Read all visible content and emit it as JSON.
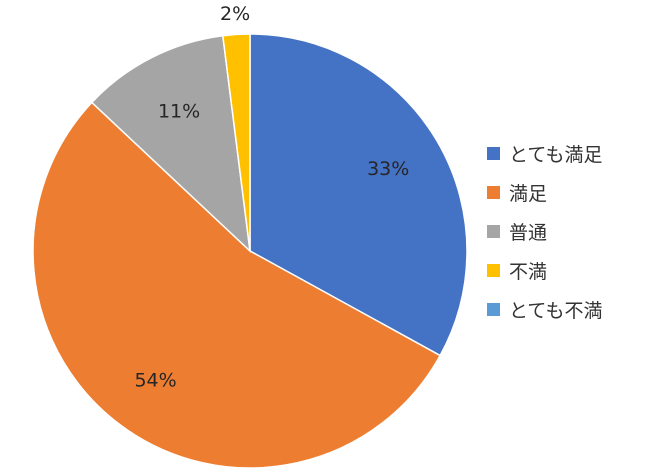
{
  "chart_data": {
    "type": "pie",
    "start_angle_deg": 0,
    "direction": "clockwise",
    "slices": [
      {
        "name": "とても満足",
        "value": 33,
        "label": "33%",
        "color": "#4472C4"
      },
      {
        "name": "満足",
        "value": 54,
        "label": "54%",
        "color": "#ED7D31"
      },
      {
        "name": "普通",
        "value": 11,
        "label": "11%",
        "color": "#A5A5A5"
      },
      {
        "name": "不満",
        "value": 2,
        "label": "2%",
        "color": "#FFC000"
      },
      {
        "name": "とても不満",
        "value": 0,
        "label": "",
        "color": "#5B9BD5"
      }
    ],
    "legend": {
      "position": "right",
      "items": [
        "とても満足",
        "満足",
        "普通",
        "不満",
        "とても不満"
      ]
    }
  }
}
